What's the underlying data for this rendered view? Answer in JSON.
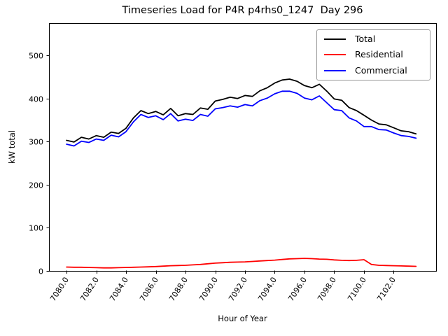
{
  "chart_data": {
    "type": "line",
    "title": "Timeseries Load for P4R p4rhs0_1247  Day 296",
    "xlabel": "Hour of Year",
    "ylabel": "kW total",
    "grid": false,
    "legend_position": "upper right",
    "xlim": [
      7078.82,
      7104.85
    ],
    "ylim": [
      0,
      575
    ],
    "x_start_hour": 7080.0,
    "x_step_hours": 0.5,
    "x_tick_values": [
      7080,
      7082,
      7084,
      7086,
      7088,
      7090,
      7092,
      7094,
      7096,
      7098,
      7100,
      7102
    ],
    "x_tick_labels": [
      "7080.0",
      "7082.0",
      "7084.0",
      "7086.0",
      "7088.0",
      "7090.0",
      "7092.0",
      "7094.0",
      "7096.0",
      "7098.0",
      "7100.0",
      "7102.0"
    ],
    "y_tick_values": [
      0,
      100,
      200,
      300,
      400,
      500
    ],
    "y_tick_labels": [
      "0",
      "100",
      "200",
      "300",
      "400",
      "500"
    ],
    "series": [
      {
        "name": "Total",
        "color": "#000000",
        "values": [
          303,
          299,
          310,
          306,
          314,
          310,
          322,
          319,
          331,
          355,
          372,
          365,
          370,
          362,
          377,
          360,
          365,
          363,
          378,
          375,
          394,
          398,
          403,
          400,
          407,
          405,
          418,
          425,
          436,
          443,
          445,
          440,
          430,
          425,
          433,
          417,
          399,
          396,
          379,
          372,
          361,
          350,
          341,
          339,
          332,
          325,
          323,
          318
        ]
      },
      {
        "name": "Residential",
        "color": "#ff0000",
        "values": [
          9,
          8.5,
          8.5,
          8,
          7.5,
          7,
          7,
          7.5,
          8,
          8.5,
          9,
          9.5,
          10,
          11,
          12,
          12.5,
          13,
          14,
          15,
          16.5,
          18,
          19,
          20,
          20.5,
          21,
          22,
          23,
          24,
          25,
          26.5,
          28,
          28.5,
          29,
          28.5,
          27.5,
          27,
          25.5,
          24.5,
          24,
          24.5,
          26,
          15,
          13,
          12.5,
          12,
          11.5,
          11,
          10.5
        ]
      },
      {
        "name": "Commercial",
        "color": "#0000ff",
        "values": [
          294,
          290,
          301,
          298,
          306,
          303,
          315,
          311,
          323,
          346,
          363,
          356,
          360,
          351,
          365,
          348,
          352,
          349,
          363,
          359,
          376,
          379,
          383,
          380,
          386,
          383,
          395,
          401,
          411,
          417,
          417,
          412,
          401,
          397,
          406,
          390,
          374,
          372,
          355,
          348,
          335,
          335,
          328,
          327,
          320,
          314,
          312,
          308
        ]
      }
    ]
  }
}
